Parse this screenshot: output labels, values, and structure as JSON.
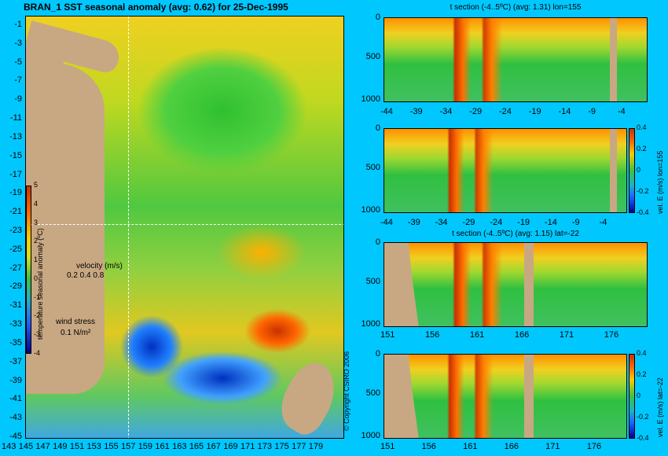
{
  "main_title": "BRAN_1 SST seasonal anomaly (avg: 0.62) for 25-Dec-1995",
  "main_map": {
    "lat_labels": [
      "-1",
      "-3",
      "-5",
      "-7",
      "-9",
      "-11",
      "-13",
      "-15",
      "-17",
      "-19",
      "-21",
      "-23",
      "-25",
      "-27",
      "-29",
      "-31",
      "-33",
      "-35",
      "-37",
      "-39",
      "-41",
      "-43",
      "-45"
    ],
    "lon_labels": [
      "143",
      "145",
      "147",
      "149",
      "151",
      "153",
      "155",
      "157",
      "159",
      "161",
      "163",
      "165",
      "167",
      "169",
      "171",
      "173",
      "175",
      "177",
      "179"
    ],
    "colorbar_ticks": [
      "5",
      "4",
      "3",
      "2",
      "1",
      "0",
      "-1",
      "-2",
      "-3",
      "-4"
    ],
    "colorbar_label": "temperature seasonal anomaly (ºC)",
    "velocity_label": "velocity (m/s)",
    "velocity_scale": "0.2 0.4 0.8",
    "wind_label": "wind stress",
    "wind_scale": "0.1 N/m²",
    "copyright": "© Copyright CSIRO 2006"
  },
  "panels": [
    {
      "title": "t section (-4..5ºC) (avg: 1.31) lon=155",
      "y_ticks": [
        "0",
        "500",
        "1000"
      ],
      "x_ticks": [
        "-44",
        "-39",
        "-34",
        "-29",
        "-24",
        "-19",
        "-14",
        "-9",
        "-4"
      ]
    },
    {
      "title": "",
      "y_ticks": [
        "0",
        "500",
        "1000"
      ],
      "x_ticks": [
        "-44",
        "-39",
        "-34",
        "-29",
        "-24",
        "-19",
        "-14",
        "-9",
        "-4"
      ],
      "cbar_ticks": [
        "0.4",
        "0.2",
        "0",
        "-0.2",
        "-0.4"
      ],
      "cbar_label": "vel. E (m/s) lon=155"
    },
    {
      "title": "t section (-4..5ºC) (avg: 1.15) lat=-22",
      "y_ticks": [
        "0",
        "500",
        "1000"
      ],
      "x_ticks": [
        "151",
        "156",
        "161",
        "166",
        "171",
        "176"
      ]
    },
    {
      "title": "",
      "y_ticks": [
        "0",
        "500",
        "1000"
      ],
      "x_ticks": [
        "151",
        "156",
        "161",
        "166",
        "171",
        "176"
      ],
      "cbar_ticks": [
        "0.4",
        "0.2",
        "0",
        "-0.2",
        "-0.4"
      ],
      "cbar_label": "vel. E (m/s) lat=-22"
    }
  ]
}
